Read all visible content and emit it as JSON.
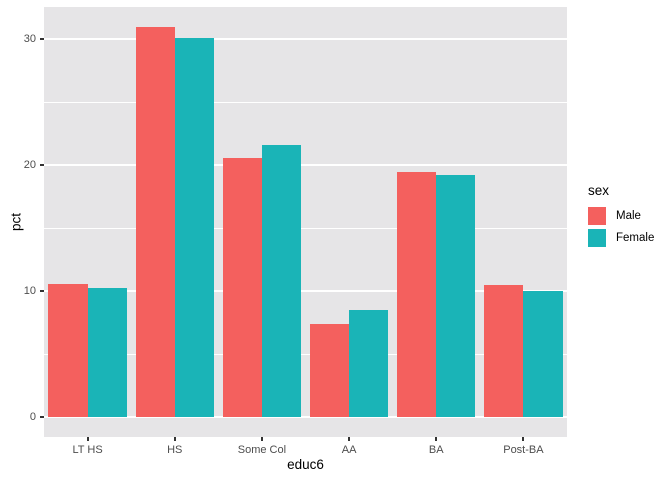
{
  "chart_data": {
    "type": "bar",
    "bar_layout": "dodged",
    "title": "",
    "xlabel": "educ6",
    "ylabel": "pct",
    "categories": [
      "LT HS",
      "HS",
      "Some Col",
      "AA",
      "BA",
      "Post-BA"
    ],
    "series": [
      {
        "name": "Male",
        "color": "#F4605E",
        "values": [
          10.6,
          31.0,
          20.6,
          7.4,
          19.5,
          10.5
        ]
      },
      {
        "name": "Female",
        "color": "#1AB4B7",
        "values": [
          10.3,
          30.1,
          21.6,
          8.5,
          19.2,
          10.0
        ]
      }
    ],
    "legend": {
      "title": "sex",
      "position": "right"
    },
    "y_ticks": [
      0,
      10,
      20,
      30
    ],
    "y_minor_ticks": [
      5,
      15,
      25
    ],
    "y_domain": [
      -1.55,
      32.55
    ],
    "bar_group_width": 0.9,
    "grid": true,
    "colors": {
      "panel_bg": "#E6E5E7",
      "grid_major": "#FFFFFF",
      "grid_minor": "#FFFFFF",
      "tick_label": "#4D4D4D",
      "tick_mark": "#333333",
      "axis_title": "#000000",
      "legend_text": "#000000"
    }
  }
}
